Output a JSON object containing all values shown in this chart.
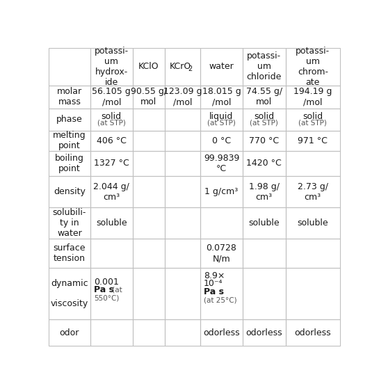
{
  "col_headers": [
    "",
    "potassi-\num\nhydrox-\nide",
    "KClO",
    "KCrO2",
    "water",
    "potassi-\num\nchloride",
    "potassi-\num\nchrom-\nate"
  ],
  "row_headers": [
    "molar\nmass",
    "phase",
    "melting\npoint",
    "boiling\npoint",
    "density",
    "solubili-\nty in\nwater",
    "surface\ntension",
    "dynamic\n\nviscosity",
    "odor"
  ],
  "cells": [
    [
      "56.105 g\n/mol",
      "90.55 g/\nmol",
      "123.09 g\n/mol",
      "18.015 g\n/mol",
      "74.55 g/\nmol",
      "194.19 g\n/mol"
    ],
    [
      "solid\n(at STP)",
      "",
      "",
      "liquid\n(at STP)",
      "solid\n(at STP)",
      "solid\n(at STP)"
    ],
    [
      "406 °C",
      "",
      "",
      "0 °C",
      "770 °C",
      "971 °C"
    ],
    [
      "1327 °C",
      "",
      "",
      "99.9839\n°C",
      "1420 °C",
      ""
    ],
    [
      "2.044 g/\ncm³",
      "",
      "",
      "1 g/cm³",
      "1.98 g/\ncm³",
      "2.73 g/\ncm³"
    ],
    [
      "soluble",
      "",
      "",
      "",
      "soluble",
      "soluble"
    ],
    [
      "",
      "",
      "",
      "0.0728\nN/m",
      "",
      ""
    ],
    [
      "",
      "",
      "",
      "",
      "",
      ""
    ],
    [
      "",
      "",
      "",
      "odorless",
      "odorless",
      "odorless"
    ]
  ],
  "background_color": "#ffffff",
  "grid_color": "#c0c0c0",
  "text_color": "#1a1a1a",
  "small_color": "#555555",
  "fontsize": 9.0,
  "small_fontsize": 7.5
}
